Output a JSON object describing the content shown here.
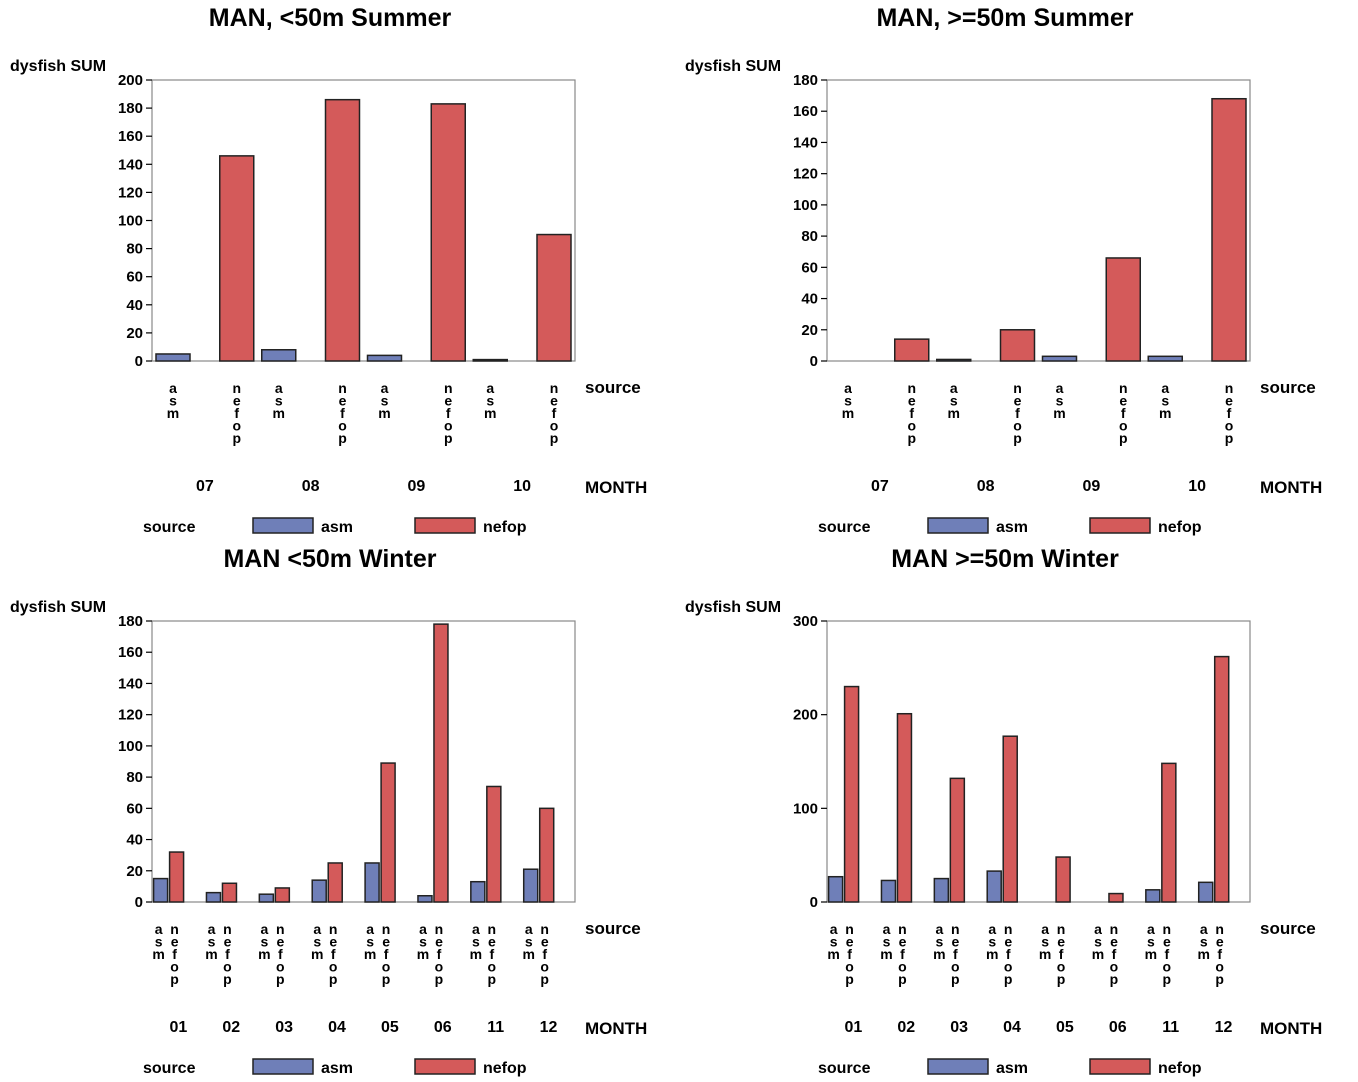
{
  "colors": {
    "asm": "#6f7fb8",
    "nefop": "#d45a5a",
    "outline": "#222222",
    "frame": "#888888"
  },
  "chart_data": [
    {
      "type": "bar",
      "title": "MAN, <50m Summer",
      "ylabel": "dysfish SUM",
      "xlabel": "MONTH",
      "group_label": "source",
      "ylim": [
        0,
        200
      ],
      "yticks": [
        0,
        20,
        40,
        60,
        80,
        100,
        120,
        140,
        160,
        180,
        200
      ],
      "categories": [
        "07",
        "08",
        "09",
        "10"
      ],
      "source_tick_layout": "column",
      "series": [
        {
          "name": "asm",
          "values": [
            5,
            8,
            4,
            1
          ]
        },
        {
          "name": "nefop",
          "values": [
            146,
            186,
            183,
            90
          ]
        }
      ],
      "legend": {
        "title": "source",
        "items": [
          "asm",
          "nefop"
        ],
        "position": "bottom"
      }
    },
    {
      "type": "bar",
      "title": "MAN, >=50m Summer",
      "ylabel": "dysfish SUM",
      "xlabel": "MONTH",
      "group_label": "source",
      "ylim": [
        0,
        180
      ],
      "yticks": [
        0,
        20,
        40,
        60,
        80,
        100,
        120,
        140,
        160,
        180
      ],
      "categories": [
        "07",
        "08",
        "09",
        "10"
      ],
      "source_tick_layout": "column",
      "series": [
        {
          "name": "asm",
          "values": [
            0,
            1,
            3,
            3
          ]
        },
        {
          "name": "nefop",
          "values": [
            14,
            20,
            66,
            168
          ]
        }
      ],
      "legend": {
        "title": "source",
        "items": [
          "asm",
          "nefop"
        ],
        "position": "bottom"
      }
    },
    {
      "type": "bar",
      "title": "MAN <50m Winter",
      "ylabel": "dysfish SUM",
      "xlabel": "MONTH",
      "group_label": "source",
      "ylim": [
        0,
        180
      ],
      "yticks": [
        0,
        20,
        40,
        60,
        80,
        100,
        120,
        140,
        160,
        180
      ],
      "categories": [
        "01",
        "02",
        "03",
        "04",
        "05",
        "06",
        "11",
        "12"
      ],
      "source_tick_layout": "stagger",
      "series": [
        {
          "name": "asm",
          "values": [
            15,
            6,
            5,
            14,
            25,
            4,
            13,
            21
          ]
        },
        {
          "name": "nefop",
          "values": [
            32,
            12,
            9,
            25,
            89,
            178,
            74,
            60
          ]
        }
      ],
      "legend": {
        "title": "source",
        "items": [
          "asm",
          "nefop"
        ],
        "position": "bottom"
      }
    },
    {
      "type": "bar",
      "title": "MAN >=50m Winter",
      "ylabel": "dysfish SUM",
      "xlabel": "MONTH",
      "group_label": "source",
      "ylim": [
        0,
        300
      ],
      "yticks": [
        0,
        100,
        200,
        300
      ],
      "categories": [
        "01",
        "02",
        "03",
        "04",
        "05",
        "06",
        "11",
        "12"
      ],
      "source_tick_layout": "stagger",
      "series": [
        {
          "name": "asm",
          "values": [
            27,
            23,
            25,
            33,
            0,
            0,
            13,
            21
          ]
        },
        {
          "name": "nefop",
          "values": [
            230,
            201,
            132,
            177,
            48,
            9,
            148,
            262
          ]
        }
      ],
      "legend": {
        "title": "source",
        "items": [
          "asm",
          "nefop"
        ],
        "position": "bottom"
      }
    }
  ]
}
